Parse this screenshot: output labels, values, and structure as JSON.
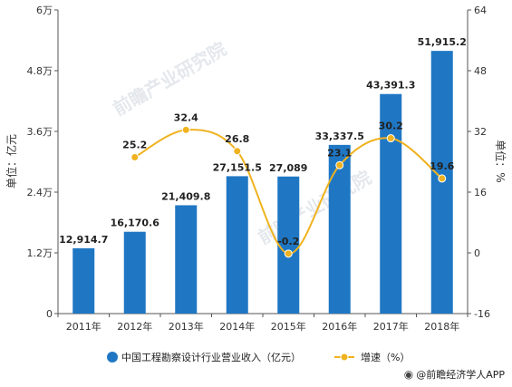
{
  "chart_data": {
    "type": "bar",
    "categories": [
      "2011年",
      "2012年",
      "2013年",
      "2014年",
      "2015年",
      "2016年",
      "2017年",
      "2018年"
    ],
    "series": [
      {
        "name": "中国工程勘察设计行业营业收入（亿元）",
        "type": "bar",
        "axis": "left",
        "values": [
          12914.7,
          16170.6,
          21409.8,
          27151.5,
          27089,
          33337.5,
          43391.3,
          51915.2
        ],
        "labels": [
          "12,914.7",
          "16,170.6",
          "21,409.8",
          "27,151.5",
          "27,089",
          "33,337.5",
          "43,391.3",
          "51,915.2"
        ],
        "color": "#1f77c4"
      },
      {
        "name": "增速（%）",
        "type": "line",
        "axis": "right",
        "values": [
          null,
          25.2,
          32.4,
          26.8,
          -0.2,
          23.1,
          30.2,
          19.6
        ],
        "labels": [
          "",
          "25.2",
          "32.4",
          "26.8",
          "-0.2",
          "23.1",
          "30.2",
          "19.6"
        ],
        "color": "#f0b21e"
      }
    ],
    "y_left": {
      "label": "单位：亿元",
      "ylim": [
        0,
        60000
      ],
      "ticks": [
        0,
        12000,
        24000,
        36000,
        48000,
        60000
      ],
      "tick_labels": [
        "0",
        "1.2万",
        "2.4万",
        "3.6万",
        "4.8万",
        "6万"
      ]
    },
    "y_right": {
      "label": "单位：%",
      "ylim": [
        -16,
        64
      ],
      "ticks": [
        -16,
        0,
        16,
        32,
        48,
        64
      ],
      "tick_labels": [
        "-16",
        "0",
        "16",
        "32",
        "48",
        "64"
      ]
    },
    "grid": false,
    "legend_position": "bottom"
  },
  "watermark": "前瞻产业研究院",
  "brand": {
    "icon": "weibo-icon",
    "text": "@前瞻经济学人APP"
  }
}
